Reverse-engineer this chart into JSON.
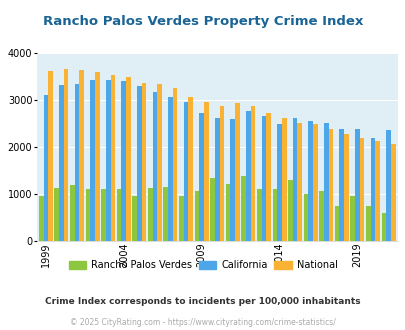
{
  "title": "Rancho Palos Verdes Property Crime Index",
  "years": [
    1999,
    2000,
    2001,
    2002,
    2003,
    2004,
    2005,
    2006,
    2007,
    2008,
    2009,
    2010,
    2011,
    2012,
    2013,
    2014,
    2015,
    2016,
    2017,
    2018,
    2019,
    2020,
    2021
  ],
  "rpv": [
    950,
    1120,
    1190,
    1110,
    1110,
    1110,
    960,
    1130,
    1150,
    960,
    1060,
    1330,
    1200,
    1380,
    1100,
    1110,
    1300,
    1000,
    1060,
    750,
    960,
    750,
    600
  ],
  "california": [
    3100,
    3320,
    3340,
    3420,
    3430,
    3400,
    3300,
    3160,
    3050,
    2950,
    2730,
    2620,
    2600,
    2760,
    2650,
    2480,
    2620,
    2560,
    2500,
    2390,
    2390,
    2180,
    2360
  ],
  "national": [
    3620,
    3650,
    3640,
    3600,
    3520,
    3480,
    3360,
    3330,
    3250,
    3060,
    2960,
    2870,
    2940,
    2860,
    2730,
    2620,
    2510,
    2490,
    2370,
    2280,
    2190,
    2120,
    2060
  ],
  "color_rpv": "#8dc63f",
  "color_ca": "#4da6e8",
  "color_nat": "#f9b234",
  "color_bg": "#e0eff5",
  "ylim": [
    0,
    4000
  ],
  "yticks": [
    0,
    1000,
    2000,
    3000,
    4000
  ],
  "xlabel_ticks": [
    1999,
    2004,
    2009,
    2014,
    2019
  ],
  "legend_labels": [
    "Rancho Palos Verdes",
    "California",
    "National"
  ],
  "footnote1": "Crime Index corresponds to incidents per 100,000 inhabitants",
  "footnote2": "© 2025 CityRating.com - https://www.cityrating.com/crime-statistics/",
  "title_color": "#1a6496",
  "footnote1_color": "#333333",
  "footnote2_color": "#aaaaaa"
}
